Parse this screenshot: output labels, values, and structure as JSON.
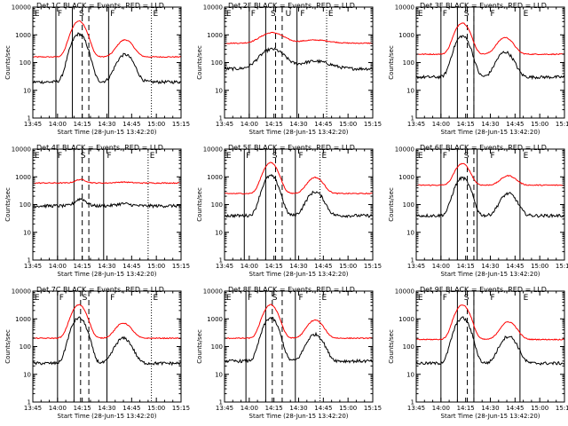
{
  "charts": [
    {
      "det": "Det 1",
      "title": "Det 1C BLACK = Events, RED = LLD",
      "x_range": [
        "13:45",
        "15:15"
      ],
      "solid": [
        "13:59",
        "14:09",
        "14:31"
      ],
      "dashed": [
        "14:15",
        "14:19"
      ],
      "dotted": [
        "14:57"
      ],
      "zones": [
        {
          "t": "13:46",
          "l": "E"
        },
        {
          "t": "14:00",
          "l": "F"
        },
        {
          "t": "14:13",
          "l": "S"
        },
        {
          "t": "14:32",
          "l": "F"
        },
        {
          "t": "14:58",
          "l": "E"
        }
      ],
      "bl": 20,
      "br": 160,
      "peaks": [
        {
          "t": "14:13",
          "a": 3000,
          "w": 3.5
        },
        {
          "t": "14:41",
          "a": 500,
          "w": 4
        }
      ]
    },
    {
      "det": "Det 2",
      "title": "Det 2F BLACK = Events, RED = LLD",
      "x_range": [
        "13:45",
        "15:15"
      ],
      "solid": [
        "14:00",
        "14:10",
        "14:29"
      ],
      "dashed": [
        "14:16",
        "14:20"
      ],
      "dotted": [
        "14:47"
      ],
      "zones": [
        {
          "t": "13:46",
          "l": "E"
        },
        {
          "t": "14:01",
          "l": "F"
        },
        {
          "t": "14:13",
          "l": "S"
        },
        {
          "t": "14:22",
          "l": "U"
        },
        {
          "t": "14:31",
          "l": "F"
        },
        {
          "t": "14:48",
          "l": "E"
        }
      ],
      "bl": 60,
      "br": 500,
      "peaks": [
        {
          "t": "14:14",
          "a": 700,
          "w": 6
        },
        {
          "t": "14:40",
          "a": 150,
          "w": 8
        }
      ]
    },
    {
      "det": "Det 3",
      "title": "Det 3F BLACK = Events, RED = LLD",
      "x_range": [
        "13:45",
        "15:15"
      ],
      "solid": [
        "14:00",
        "14:10",
        "14:20",
        "14:48"
      ],
      "dashed": [
        "14:16",
        "14:20"
      ],
      "dotted": [],
      "zones": [
        {
          "t": "13:46",
          "l": "E"
        },
        {
          "t": "14:01",
          "l": "F"
        },
        {
          "t": "14:14",
          "l": "S"
        },
        {
          "t": "14:30",
          "l": "F"
        },
        {
          "t": "14:50",
          "l": "E"
        }
      ],
      "bl": 30,
      "br": 200,
      "peaks": [
        {
          "t": "14:13",
          "a": 2500,
          "w": 3.5
        },
        {
          "t": "14:39",
          "a": 600,
          "w": 4
        }
      ]
    },
    {
      "det": "Det 4",
      "title": "Det 4F BLACK = Events, RED = LLD",
      "x_range": [
        "13:45",
        "15:15"
      ],
      "solid": [
        "14:00",
        "14:10",
        "14:28"
      ],
      "dashed": [
        "14:15",
        "14:19"
      ],
      "dotted": [
        "14:55"
      ],
      "zones": [
        {
          "t": "13:46",
          "l": "E"
        },
        {
          "t": "14:00",
          "l": "F"
        },
        {
          "t": "14:14",
          "l": "S"
        },
        {
          "t": "14:30",
          "l": "F"
        },
        {
          "t": "14:56",
          "l": "E"
        }
      ],
      "bl": 90,
      "br": 600,
      "peaks": [
        {
          "t": "14:14",
          "a": 200,
          "w": 3
        },
        {
          "t": "14:40",
          "a": 50,
          "w": 4
        }
      ]
    },
    {
      "det": "Det 5",
      "title": "Det 5F BLACK = Events, RED = LLD",
      "x_range": [
        "13:45",
        "15:15"
      ],
      "solid": [
        "13:57",
        "14:10",
        "14:28"
      ],
      "dashed": [
        "14:16",
        "14:20"
      ],
      "dotted": [
        "14:43"
      ],
      "zones": [
        {
          "t": "13:46",
          "l": "E"
        },
        {
          "t": "13:58",
          "l": "F"
        },
        {
          "t": "14:14",
          "l": "S"
        },
        {
          "t": "14:30",
          "l": "F"
        },
        {
          "t": "14:44",
          "l": "E"
        }
      ],
      "bl": 40,
      "br": 250,
      "peaks": [
        {
          "t": "14:13",
          "a": 3000,
          "w": 3.5
        },
        {
          "t": "14:40",
          "a": 700,
          "w": 4
        }
      ]
    },
    {
      "det": "Det 6",
      "title": "Det 6F BLACK = Events, RED = LLD",
      "x_range": [
        "13:45",
        "15:15"
      ],
      "solid": [
        "14:00",
        "14:10",
        "14:22",
        "14:48"
      ],
      "dashed": [
        "14:16",
        "14:20"
      ],
      "dotted": [],
      "zones": [
        {
          "t": "13:46",
          "l": "E"
        },
        {
          "t": "14:01",
          "l": "F"
        },
        {
          "t": "14:14",
          "l": "S"
        },
        {
          "t": "14:30",
          "l": "F"
        },
        {
          "t": "14:50",
          "l": "E"
        }
      ],
      "bl": 40,
      "br": 500,
      "peaks": [
        {
          "t": "14:13",
          "a": 2500,
          "w": 3.5
        },
        {
          "t": "14:41",
          "a": 600,
          "w": 4
        }
      ]
    },
    {
      "det": "Det 7",
      "title": "Det 7C BLACK = Events, RED = LLD",
      "x_range": [
        "13:45",
        "15:15"
      ],
      "solid": [
        "14:00",
        "14:10",
        "14:30"
      ],
      "dashed": [
        "14:14",
        "14:19"
      ],
      "dotted": [
        "14:57"
      ],
      "zones": [
        {
          "t": "13:46",
          "l": "E"
        },
        {
          "t": "14:01",
          "l": "F"
        },
        {
          "t": "14:15",
          "l": "S"
        },
        {
          "t": "14:32",
          "l": "F"
        },
        {
          "t": "14:58",
          "l": "E"
        }
      ],
      "bl": 25,
      "br": 200,
      "peaks": [
        {
          "t": "14:13",
          "a": 3000,
          "w": 3.5
        },
        {
          "t": "14:40",
          "a": 500,
          "w": 4
        }
      ]
    },
    {
      "det": "Det 8",
      "title": "Det 8F BLACK = Events, RED = LLD",
      "x_range": [
        "13:45",
        "15:15"
      ],
      "solid": [
        "13:58",
        "14:10",
        "14:28"
      ],
      "dashed": [
        "14:14",
        "14:20"
      ],
      "dotted": [
        "14:43"
      ],
      "zones": [
        {
          "t": "13:46",
          "l": "E"
        },
        {
          "t": "13:59",
          "l": "F"
        },
        {
          "t": "14:14",
          "l": "S"
        },
        {
          "t": "14:30",
          "l": "F"
        },
        {
          "t": "14:44",
          "l": "E"
        }
      ],
      "bl": 30,
      "br": 200,
      "peaks": [
        {
          "t": "14:13",
          "a": 3000,
          "w": 3.5
        },
        {
          "t": "14:40",
          "a": 700,
          "w": 4
        }
      ]
    },
    {
      "det": "Det 9",
      "title": "Det 9F BLACK = Events, RED = LLD",
      "x_range": [
        "13:45",
        "15:15"
      ],
      "solid": [
        "14:00",
        "14:10",
        "14:20",
        "14:48"
      ],
      "dashed": [
        "14:16",
        "14:20"
      ],
      "dotted": [],
      "zones": [
        {
          "t": "13:46",
          "l": "E"
        },
        {
          "t": "14:01",
          "l": "F"
        },
        {
          "t": "14:14",
          "l": "S"
        },
        {
          "t": "14:30",
          "l": "F"
        },
        {
          "t": "14:50",
          "l": "E"
        }
      ],
      "bl": 25,
      "br": 180,
      "peaks": [
        {
          "t": "14:13",
          "a": 3000,
          "w": 3.5
        },
        {
          "t": "14:41",
          "a": 600,
          "w": 4
        }
      ]
    }
  ],
  "chart_data": [
    {
      "type": "line",
      "title": "Det 1C BLACK = Events, RED = LLD",
      "xlabel": "Start Time (28-Jun-15 13:42:20)",
      "ylabel": "Counts/sec",
      "yscale": "log",
      "ylim": [
        1,
        10000
      ],
      "xlim": [
        "13:45",
        "15:15"
      ],
      "series": [
        {
          "name": "Events",
          "color": "#000000"
        },
        {
          "name": "LLD",
          "color": "#ff0000"
        }
      ]
    },
    {
      "type": "line",
      "title": "Det 2F BLACK = Events, RED = LLD",
      "xlabel": "Start Time (28-Jun-15 13:42:20)",
      "ylabel": "Counts/sec",
      "yscale": "log",
      "ylim": [
        1,
        10000
      ],
      "xlim": [
        "13:45",
        "15:15"
      ],
      "series": [
        {
          "name": "Events",
          "color": "#000000"
        },
        {
          "name": "LLD",
          "color": "#ff0000"
        }
      ]
    },
    {
      "type": "line",
      "title": "Det 3F BLACK = Events, RED = LLD",
      "xlabel": "Start Time (28-Jun-15 13:42:20)",
      "ylabel": "Counts/sec",
      "yscale": "log",
      "ylim": [
        1,
        10000
      ],
      "xlim": [
        "13:45",
        "15:15"
      ],
      "series": [
        {
          "name": "Events",
          "color": "#000000"
        },
        {
          "name": "LLD",
          "color": "#ff0000"
        }
      ]
    },
    {
      "type": "line",
      "title": "Det 4F BLACK = Events, RED = LLD",
      "xlabel": "Start Time (28-Jun-15 13:42:20)",
      "ylabel": "Counts/sec",
      "yscale": "log",
      "ylim": [
        1,
        10000
      ],
      "xlim": [
        "13:45",
        "15:15"
      ],
      "series": [
        {
          "name": "Events",
          "color": "#000000"
        },
        {
          "name": "LLD",
          "color": "#ff0000"
        }
      ]
    },
    {
      "type": "line",
      "title": "Det 5F BLACK = Events, RED = LLD",
      "xlabel": "Start Time (28-Jun-15 13:42:20)",
      "ylabel": "Counts/sec",
      "yscale": "log",
      "ylim": [
        1,
        10000
      ],
      "xlim": [
        "13:45",
        "15:15"
      ],
      "series": [
        {
          "name": "Events",
          "color": "#000000"
        },
        {
          "name": "LLD",
          "color": "#ff0000"
        }
      ]
    },
    {
      "type": "line",
      "title": "Det 6F BLACK = Events, RED = LLD",
      "xlabel": "Start Time (28-Jun-15 13:42:20)",
      "ylabel": "Counts/sec",
      "yscale": "log",
      "ylim": [
        1,
        10000
      ],
      "xlim": [
        "13:45",
        "15:15"
      ],
      "series": [
        {
          "name": "Events",
          "color": "#000000"
        },
        {
          "name": "LLD",
          "color": "#ff0000"
        }
      ]
    },
    {
      "type": "line",
      "title": "Det 7C BLACK = Events, RED = LLD",
      "xlabel": "Start Time (28-Jun-15 13:42:20)",
      "ylabel": "Counts/sec",
      "yscale": "log",
      "ylim": [
        1,
        10000
      ],
      "xlim": [
        "13:45",
        "15:15"
      ],
      "series": [
        {
          "name": "Events",
          "color": "#000000"
        },
        {
          "name": "LLD",
          "color": "#ff0000"
        }
      ]
    },
    {
      "type": "line",
      "title": "Det 8F BLACK = Events, RED = LLD",
      "xlabel": "Start Time (28-Jun-15 13:42:20)",
      "ylabel": "Counts/sec",
      "yscale": "log",
      "ylim": [
        1,
        10000
      ],
      "xlim": [
        "13:45",
        "15:15"
      ],
      "series": [
        {
          "name": "Events",
          "color": "#000000"
        },
        {
          "name": "LLD",
          "color": "#ff0000"
        }
      ]
    },
    {
      "type": "line",
      "title": "Det 9F BLACK = Events, RED = LLD",
      "xlabel": "Start Time (28-Jun-15 13:42:20)",
      "ylabel": "Counts/sec",
      "yscale": "log",
      "ylim": [
        1,
        10000
      ],
      "xlim": [
        "13:45",
        "15:15"
      ],
      "series": [
        {
          "name": "Events",
          "color": "#000000"
        },
        {
          "name": "LLD",
          "color": "#ff0000"
        }
      ]
    }
  ],
  "shared": {
    "xlabel": "Start Time (28-Jun-15 13:42:20)",
    "ylabel": "Counts/sec",
    "xticks": [
      "13:45",
      "14:00",
      "14:15",
      "14:30",
      "14:45",
      "15:00",
      "15:15"
    ],
    "yticks": [
      "1",
      "10",
      "100",
      "1000",
      "10000"
    ],
    "colors": {
      "events": "#000000",
      "lld": "#ff0000"
    }
  }
}
